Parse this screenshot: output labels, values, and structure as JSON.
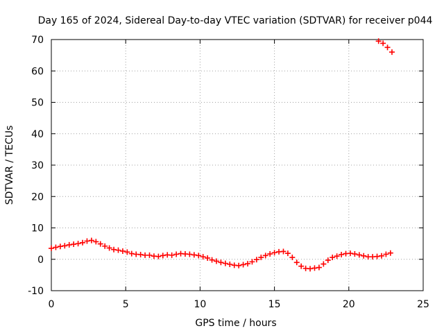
{
  "chart_data": {
    "type": "scatter",
    "title": "Day 165 of 2024, Sidereal Day-to-day VTEC variation (SDTVAR) for receiver p044",
    "xlabel": "GPS time / hours",
    "ylabel": "SDTVAR / TECUs",
    "xlim": [
      0,
      25
    ],
    "ylim": [
      -10,
      70
    ],
    "xticks": [
      0,
      5,
      10,
      15,
      20,
      25
    ],
    "yticks": [
      -10,
      0,
      10,
      20,
      30,
      40,
      50,
      60,
      70
    ],
    "grid": true,
    "marker": "+",
    "series": [
      {
        "name": "SDTVAR",
        "color": "#ff0000",
        "points": [
          [
            0.0,
            3.5
          ],
          [
            0.3,
            3.8
          ],
          [
            0.6,
            4.1
          ],
          [
            0.9,
            4.3
          ],
          [
            1.2,
            4.6
          ],
          [
            1.5,
            4.8
          ],
          [
            1.8,
            5.0
          ],
          [
            2.1,
            5.3
          ],
          [
            2.4,
            5.8
          ],
          [
            2.7,
            6.0
          ],
          [
            3.0,
            5.6
          ],
          [
            3.3,
            4.9
          ],
          [
            3.6,
            4.2
          ],
          [
            3.9,
            3.6
          ],
          [
            4.2,
            3.1
          ],
          [
            4.5,
            2.9
          ],
          [
            4.8,
            2.6
          ],
          [
            5.1,
            2.3
          ],
          [
            5.4,
            1.8
          ],
          [
            5.7,
            1.6
          ],
          [
            6.0,
            1.5
          ],
          [
            6.3,
            1.3
          ],
          [
            6.6,
            1.3
          ],
          [
            6.9,
            1.0
          ],
          [
            7.2,
            0.9
          ],
          [
            7.5,
            1.2
          ],
          [
            7.8,
            1.4
          ],
          [
            8.1,
            1.3
          ],
          [
            8.4,
            1.6
          ],
          [
            8.7,
            1.8
          ],
          [
            9.0,
            1.7
          ],
          [
            9.3,
            1.6
          ],
          [
            9.6,
            1.4
          ],
          [
            9.9,
            1.2
          ],
          [
            10.2,
            0.8
          ],
          [
            10.5,
            0.4
          ],
          [
            10.8,
            -0.2
          ],
          [
            11.1,
            -0.6
          ],
          [
            11.4,
            -1.0
          ],
          [
            11.7,
            -1.3
          ],
          [
            12.0,
            -1.6
          ],
          [
            12.3,
            -1.9
          ],
          [
            12.6,
            -2.0
          ],
          [
            12.9,
            -1.7
          ],
          [
            13.2,
            -1.4
          ],
          [
            13.5,
            -0.8
          ],
          [
            13.8,
            -0.1
          ],
          [
            14.1,
            0.6
          ],
          [
            14.4,
            1.2
          ],
          [
            14.7,
            1.7
          ],
          [
            15.0,
            2.1
          ],
          [
            15.3,
            2.4
          ],
          [
            15.6,
            2.5
          ],
          [
            15.9,
            1.9
          ],
          [
            16.2,
            0.6
          ],
          [
            16.5,
            -1.0
          ],
          [
            16.8,
            -2.2
          ],
          [
            17.1,
            -2.9
          ],
          [
            17.4,
            -3.0
          ],
          [
            17.7,
            -2.8
          ],
          [
            18.0,
            -2.6
          ],
          [
            18.3,
            -1.5
          ],
          [
            18.6,
            -0.3
          ],
          [
            18.9,
            0.6
          ],
          [
            19.2,
            1.0
          ],
          [
            19.5,
            1.5
          ],
          [
            19.8,
            1.8
          ],
          [
            20.1,
            1.9
          ],
          [
            20.4,
            1.7
          ],
          [
            20.7,
            1.4
          ],
          [
            21.0,
            1.1
          ],
          [
            21.3,
            0.8
          ],
          [
            21.6,
            0.8
          ],
          [
            21.9,
            0.9
          ],
          [
            22.2,
            1.1
          ],
          [
            22.5,
            1.6
          ],
          [
            22.8,
            2.0
          ],
          [
            22.0,
            69.5
          ],
          [
            22.3,
            68.8
          ],
          [
            22.6,
            67.5
          ],
          [
            22.9,
            66.0
          ]
        ]
      }
    ]
  }
}
